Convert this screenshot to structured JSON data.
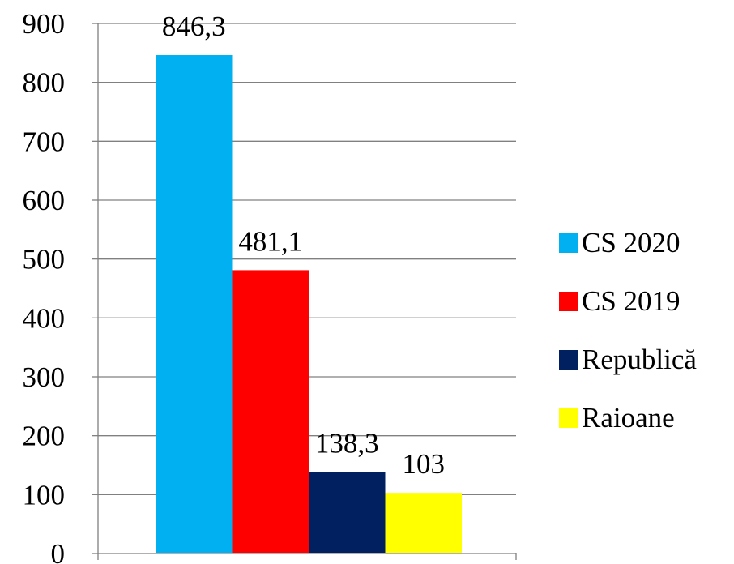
{
  "chart_data": {
    "type": "bar",
    "title": "",
    "xlabel": "",
    "ylabel": "",
    "ylim": [
      0,
      900
    ],
    "yticks": [
      0,
      100,
      200,
      300,
      400,
      500,
      600,
      700,
      800,
      900
    ],
    "ytick_labels": [
      "0",
      "100",
      "200",
      "300",
      "400",
      "500",
      "600",
      "700",
      "800",
      "900"
    ],
    "categories": [
      ""
    ],
    "grid": true,
    "legend_position": "right",
    "series": [
      {
        "name": "CS 2020",
        "values": [
          846.3
        ],
        "label": "846,3",
        "color": "#00B0F0"
      },
      {
        "name": "CS 2019",
        "values": [
          481.1
        ],
        "label": "481,1",
        "color": "#FF0000"
      },
      {
        "name": "Republică",
        "values": [
          138.3
        ],
        "label": "138,3",
        "color": "#002060"
      },
      {
        "name": "Raioane",
        "values": [
          103
        ],
        "label": "103",
        "color": "#FFFF00"
      }
    ]
  }
}
